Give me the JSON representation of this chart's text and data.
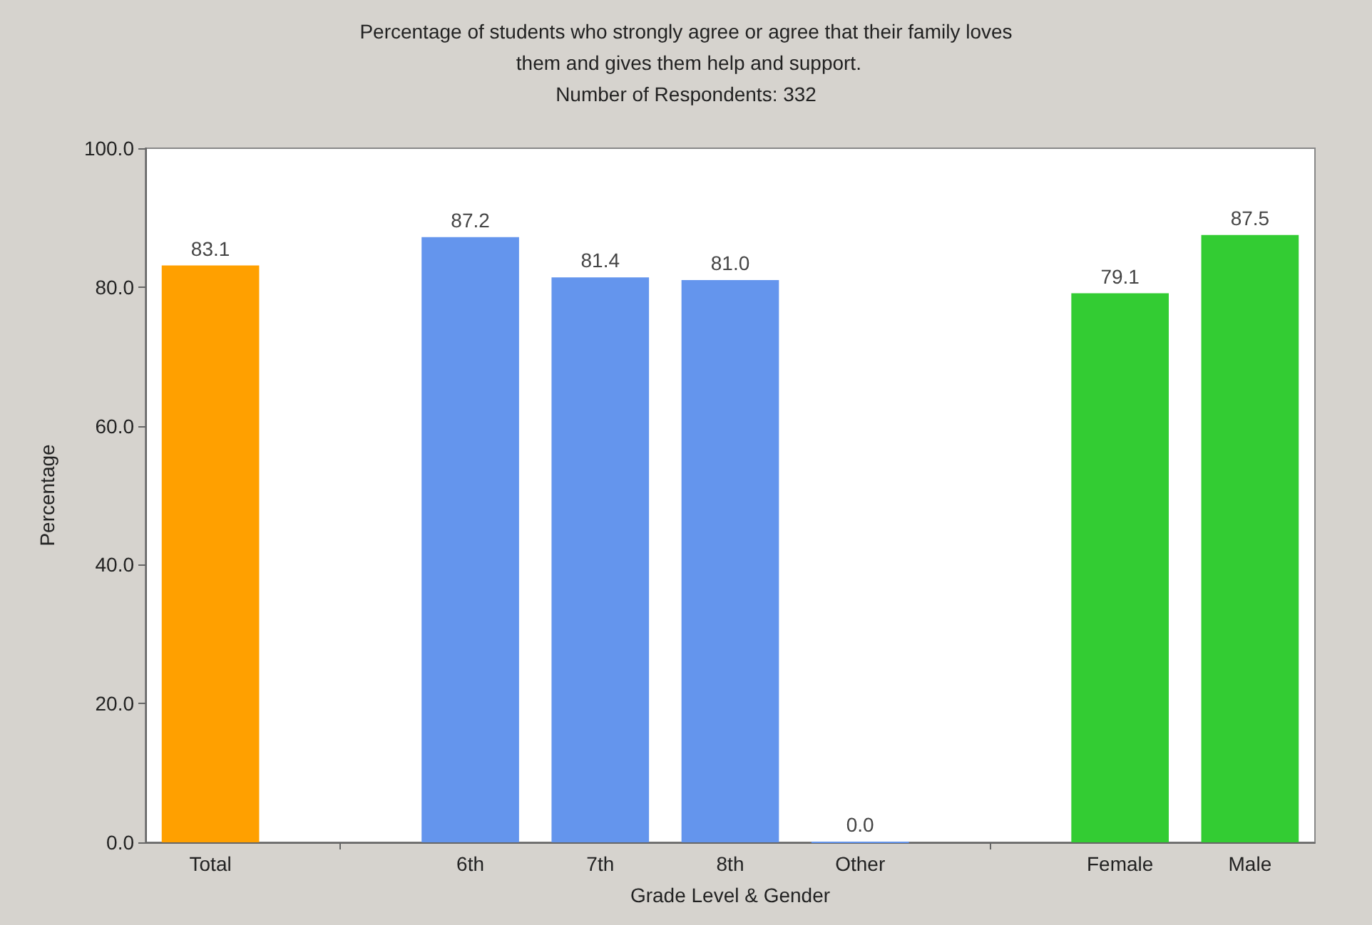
{
  "chart_data": {
    "type": "bar",
    "title": "Percentage of students who strongly agree or agree that their family loves them and gives them help and support.",
    "subtitle": "Number of Respondents: 332",
    "xlabel": "Grade Level & Gender",
    "ylabel": "Percentage",
    "categories": [
      "Total",
      null,
      "6th",
      "7th",
      "8th",
      "Other",
      null,
      "Female",
      "Male"
    ],
    "values": [
      83.1,
      null,
      87.2,
      81.4,
      81.0,
      0.0,
      null,
      79.1,
      87.5
    ],
    "colors": [
      "#ffa000",
      "#6495ed",
      "#6495ed",
      "#6495ed",
      "#6495ed",
      "#6495ed",
      "#33cc33",
      "#33cc33",
      "#33cc33"
    ],
    "value_labels": [
      "83.1",
      null,
      "87.2",
      "81.4",
      "81.0",
      "0.0",
      null,
      "79.1",
      "87.5"
    ],
    "ylim": [
      0,
      100
    ],
    "yticks": [
      {
        "value": 0,
        "label": "0.0"
      },
      {
        "value": 20,
        "label": "20.0"
      },
      {
        "value": 40,
        "label": "40.0"
      },
      {
        "value": 60,
        "label": "60.0"
      },
      {
        "value": 80,
        "label": "80.0"
      },
      {
        "value": 100,
        "label": "100.0"
      }
    ],
    "grid": false
  }
}
